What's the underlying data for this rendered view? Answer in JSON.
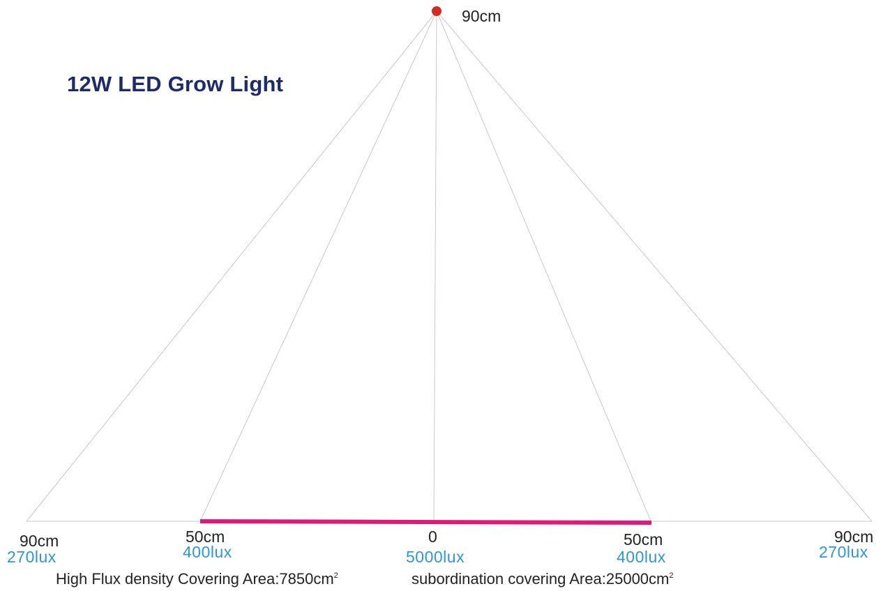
{
  "title": "12W LED Grow Light",
  "source_height_label": "90cm",
  "ground_labels": [
    {
      "id": "left-90",
      "distance": "90cm",
      "lux": "270lux"
    },
    {
      "id": "left-50",
      "distance": "50cm",
      "lux": "400lux"
    },
    {
      "id": "center",
      "distance": "0",
      "lux": "5000lux"
    },
    {
      "id": "right-50",
      "distance": "50cm",
      "lux": "400lux"
    },
    {
      "id": "right-90",
      "distance": "90cm",
      "lux": "270lux"
    }
  ],
  "footer": {
    "high_flux_label": "High Flux density Covering Area:",
    "high_flux_value": "7850cm",
    "high_flux_sup": "2",
    "subordination_label": "subordination covering Area:",
    "subordination_value": "25000cm",
    "subordination_sup": "2"
  },
  "colors": {
    "title": "#1f2a6b",
    "light_source": "#d42b23",
    "high_flux_bar": "#e0187a",
    "lux_text": "#2d97d6",
    "beam_lines": "#c8c8c8"
  }
}
